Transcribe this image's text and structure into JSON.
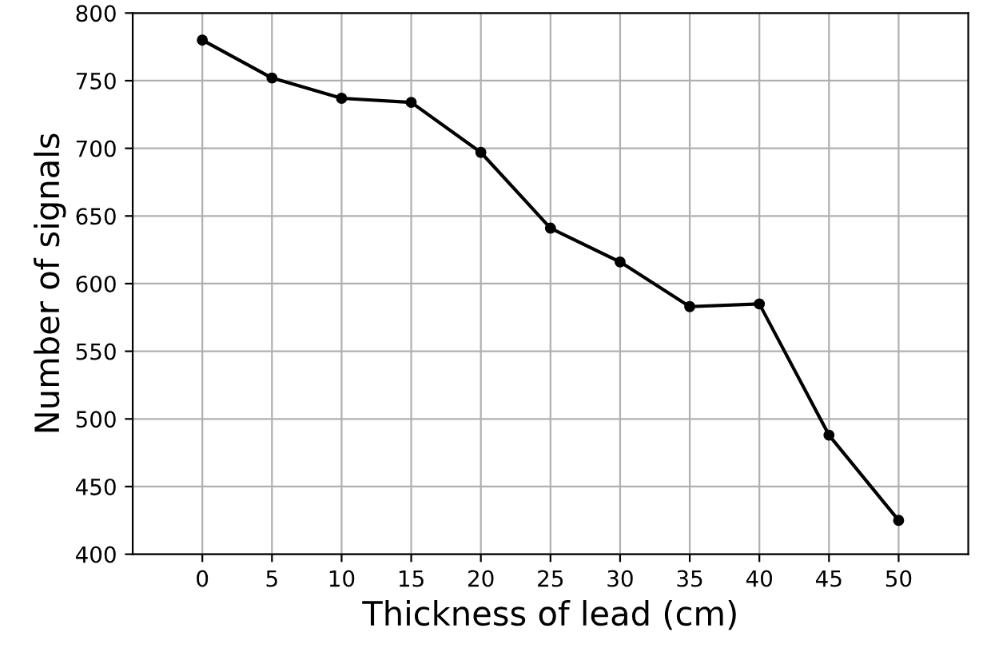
{
  "chart_data": {
    "type": "line",
    "xlabel": "Thickness of lead (cm)",
    "ylabel": "Number of signals",
    "x": [
      0,
      5,
      10,
      15,
      20,
      25,
      30,
      35,
      40,
      45,
      50
    ],
    "series": [
      {
        "color": "#000000",
        "values": [
          780,
          752,
          737,
          734,
          697,
          641,
          616,
          583,
          585,
          488,
          425
        ]
      }
    ],
    "xlim": [
      -5,
      55
    ],
    "xticks": [
      0,
      5,
      10,
      15,
      20,
      25,
      30,
      35,
      40,
      45,
      50
    ],
    "ylim": [
      400,
      800
    ],
    "yticks": [
      400,
      450,
      500,
      550,
      600,
      650,
      700,
      750,
      800
    ],
    "grid": true,
    "marker": "circle",
    "line_style": "solid"
  }
}
